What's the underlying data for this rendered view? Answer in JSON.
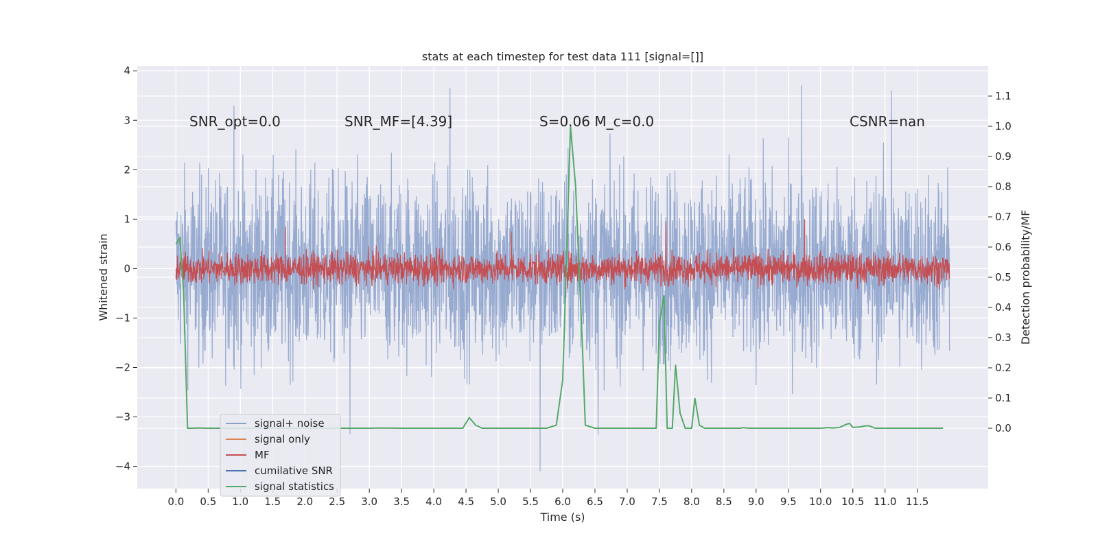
{
  "chart_data": {
    "type": "line",
    "title": "stats at each timestep for test data 111 [signal=[]]",
    "xlabel": "Time (s)",
    "ylabel_left": "Whitened strain",
    "ylabel_right": "Detection probability/MF",
    "xlim": [
      -0.6,
      12.6
    ],
    "ylim_left": [
      -4.45,
      4.1
    ],
    "ylim_right": [
      -0.2,
      1.2
    ],
    "x_ticks": [
      0.0,
      0.5,
      1.0,
      1.5,
      2.0,
      2.5,
      3.0,
      3.5,
      4.0,
      4.5,
      5.0,
      5.5,
      6.0,
      6.5,
      7.0,
      7.5,
      8.0,
      8.5,
      9.0,
      9.5,
      10.0,
      10.5,
      11.0,
      11.5
    ],
    "x_tick_labels": [
      "0.0",
      "0.5",
      "1.0",
      "1.5",
      "2.0",
      "2.5",
      "3.0",
      "3.5",
      "4.0",
      "4.5",
      "5.0",
      "5.5",
      "6.0",
      "6.5",
      "7.0",
      "7.5",
      "8.0",
      "8.5",
      "9.0",
      "9.5",
      "10.0",
      "10.5",
      "11.0",
      "11.5"
    ],
    "y_left_ticks": [
      -4,
      -3,
      -2,
      -1,
      0,
      1,
      2,
      3,
      4
    ],
    "y_left_tick_labels": [
      "−4",
      "−3",
      "−2",
      "−1",
      "0",
      "1",
      "2",
      "3",
      "4"
    ],
    "y_right_ticks": [
      0.0,
      0.1,
      0.2,
      0.3,
      0.4,
      0.5,
      0.6,
      0.7,
      0.8,
      0.9,
      1.0,
      1.1
    ],
    "y_right_tick_labels": [
      "0.0",
      "0.1",
      "0.2",
      "0.3",
      "0.4",
      "0.5",
      "0.6",
      "0.7",
      "0.8",
      "0.9",
      "1.0",
      "1.1"
    ],
    "grid": true,
    "legend_position": "lower-left",
    "annotations": [
      {
        "text": "SNR_opt=0.0"
      },
      {
        "text": "SNR_MF=[4.39]"
      },
      {
        "text": "S=0.06   M_c=0.0"
      },
      {
        "text": "CSNR=nan"
      }
    ],
    "series": [
      {
        "name": "signal+ noise",
        "axis": "left",
        "color": "#8ea3cc",
        "x_range": [
          0.0,
          12.0
        ],
        "style": "dense noise trace, amplitude approx ±2.5 with peaks to 3.7 / -4.1",
        "peaks": [
          [
            0.9,
            3.3
          ],
          [
            4.25,
            3.65
          ],
          [
            5.65,
            -4.1
          ],
          [
            9.7,
            3.7
          ],
          [
            11.1,
            3.6
          ],
          [
            2.7,
            -3.35
          ],
          [
            6.55,
            -3.35
          ]
        ]
      },
      {
        "name": "signal only",
        "axis": "left",
        "color": "#dd8452",
        "x_range": [
          0.0,
          12.0
        ],
        "values_constant": 0.0
      },
      {
        "name": "MF",
        "axis": "left",
        "color": "#c44e52",
        "x_range": [
          0.0,
          12.0
        ],
        "style": "dense noise trace, amplitude approx ±0.4 with peaks to 1.0",
        "peaks": [
          [
            1.7,
            0.85
          ],
          [
            5.2,
            0.75
          ],
          [
            7.6,
            0.95
          ],
          [
            9.75,
            1.0
          ]
        ]
      },
      {
        "name": "cumilative SNR",
        "axis": "left",
        "color": "#4c72b0",
        "x_range": [
          0.0,
          12.0
        ],
        "values_constant": null
      },
      {
        "name": "signal statistics",
        "axis": "right",
        "color": "#55a868",
        "x": [
          0.0,
          0.06,
          0.12,
          0.18,
          0.25,
          0.35,
          0.5,
          1.0,
          2.0,
          3.0,
          3.2,
          3.5,
          4.0,
          4.45,
          4.55,
          4.65,
          4.75,
          5.0,
          5.5,
          5.75,
          5.9,
          6.0,
          6.05,
          6.12,
          6.2,
          6.3,
          6.35,
          6.5,
          7.0,
          7.45,
          7.5,
          7.57,
          7.62,
          7.7,
          7.75,
          7.82,
          7.9,
          8.0,
          8.05,
          8.12,
          8.2,
          8.5,
          8.75,
          8.8,
          8.9,
          9.5,
          10.0,
          10.1,
          10.2,
          10.3,
          10.4,
          10.45,
          10.5,
          10.6,
          10.7,
          10.75,
          10.85,
          11.0,
          11.5,
          11.9
        ],
        "values": [
          0.61,
          0.63,
          0.45,
          0.0,
          0.0,
          0.001,
          0.0,
          0.0,
          0.0,
          0.0,
          0.001,
          0.0,
          0.0,
          0.0,
          0.035,
          0.01,
          0.0,
          0.0,
          0.0,
          0.0,
          0.01,
          0.16,
          0.5,
          1.0,
          0.8,
          0.3,
          0.01,
          0.0,
          0.0,
          0.0,
          0.35,
          0.44,
          0.0,
          0.0,
          0.21,
          0.05,
          0.0,
          0.0,
          0.1,
          0.01,
          0.0,
          0.0,
          0.0,
          0.002,
          0.0,
          0.0,
          0.0,
          0.002,
          0.001,
          0.003,
          0.013,
          0.016,
          0.003,
          0.004,
          0.008,
          0.008,
          0.0,
          0.0,
          0.0,
          0.0
        ]
      }
    ]
  }
}
